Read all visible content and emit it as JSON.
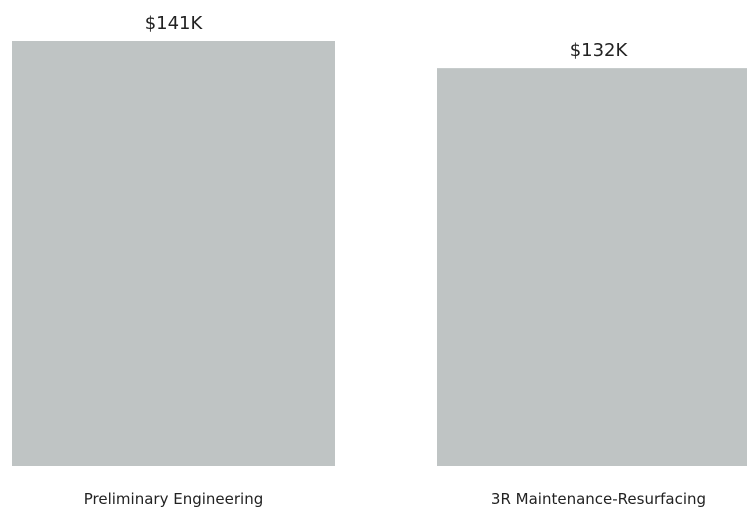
{
  "chart_data": {
    "type": "bar",
    "categories": [
      "Preliminary Engineering",
      "3R Maintenance-Resurfacing"
    ],
    "values": [
      141,
      132
    ],
    "value_labels": [
      "$141K",
      "$132K"
    ],
    "title": "",
    "xlabel": "",
    "ylabel": "",
    "ylim": [
      0,
      141
    ],
    "grid": false,
    "legend": "none",
    "bar_color": "#bfc4c4"
  }
}
